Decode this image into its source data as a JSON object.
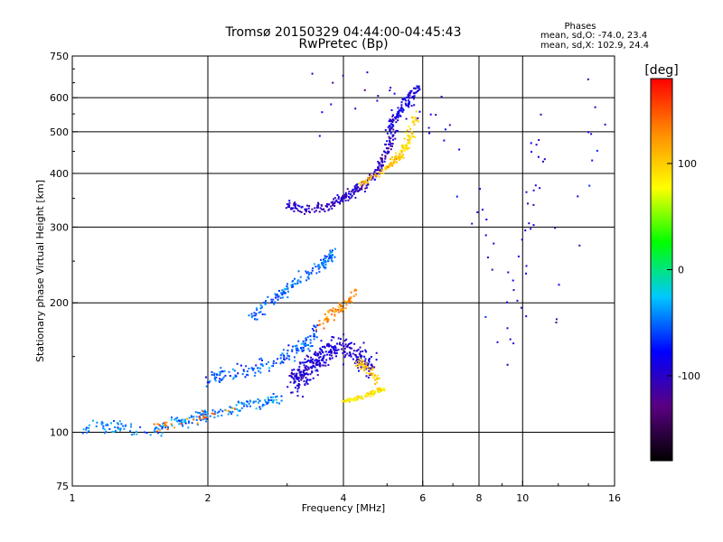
{
  "chart_data": {
    "type": "scatter",
    "title": "Tromsø 20150329 04:44:00-04:45:43",
    "subtitle": "RwPretec (Bp)",
    "xlabel": "Frequency [MHz]",
    "ylabel": "Stationary phase Virtual Height [km]",
    "x_scale": "log",
    "y_scale": "log",
    "xlim": [
      1,
      16
    ],
    "ylim": [
      75,
      750
    ],
    "x_ticks": [
      1,
      2,
      4,
      6,
      8,
      10,
      16
    ],
    "x_grid": [
      2,
      4,
      6,
      8,
      10
    ],
    "y_ticks": [
      75,
      100,
      200,
      300,
      400,
      500,
      600,
      750
    ],
    "y_grid": [
      100,
      200,
      300,
      400,
      500,
      600
    ],
    "grid": true,
    "legend": {
      "title": "Phases",
      "lines": [
        "mean, sd,O: -74.0, 23.4",
        "mean, sd,X: 102.9, 24.4"
      ],
      "placement": "top-right"
    },
    "colorbar": {
      "label": "[deg]",
      "range": [
        -180,
        180
      ],
      "ticks": [
        100,
        0,
        -100
      ],
      "colors": [
        "#000000",
        "#5a0082",
        "#0000ff",
        "#00c8ff",
        "#00ff00",
        "#ffff00",
        "#ff8c00",
        "#ff0000"
      ]
    },
    "traces": [
      {
        "points": [
          [
            1.05,
            103
          ],
          [
            1.2,
            103
          ],
          [
            1.35,
            102
          ],
          [
            1.5,
            101
          ],
          [
            1.62,
            104
          ],
          [
            1.75,
            106
          ],
          [
            1.9,
            108
          ],
          [
            2.0,
            110
          ],
          [
            2.2,
            112
          ],
          [
            2.45,
            116
          ],
          [
            2.7,
            118
          ],
          [
            2.9,
            121
          ]
        ],
        "spread": [
          0.03,
          0.05
        ],
        "phase": -45,
        "count": 220
      },
      {
        "points": [
          [
            1.5,
            101
          ],
          [
            1.9,
            108
          ],
          [
            2.3,
            112
          ]
        ],
        "spread": [
          0.03,
          0.04
        ],
        "phase": 140,
        "count": 30
      },
      {
        "points": [
          [
            2.0,
            132
          ],
          [
            2.3,
            138
          ],
          [
            2.6,
            142
          ],
          [
            3.0,
            150
          ],
          [
            3.3,
            160
          ],
          [
            3.5,
            175
          ]
        ],
        "spread": [
          0.04,
          0.06
        ],
        "phase": -55,
        "count": 160
      },
      {
        "points": [
          [
            2.5,
            185
          ],
          [
            2.75,
            200
          ],
          [
            3.0,
            215
          ],
          [
            3.3,
            230
          ],
          [
            3.6,
            245
          ],
          [
            3.8,
            260
          ]
        ],
        "spread": [
          0.03,
          0.05
        ],
        "phase": -50,
        "count": 150
      },
      {
        "points": [
          [
            3.1,
            130
          ],
          [
            3.3,
            140
          ],
          [
            3.6,
            150
          ],
          [
            3.9,
            160
          ],
          [
            4.3,
            150
          ],
          [
            4.6,
            140
          ]
        ],
        "spread": [
          0.05,
          0.1
        ],
        "phase": -95,
        "count": 350
      },
      {
        "points": [
          [
            3.5,
            175
          ],
          [
            3.8,
            190
          ],
          [
            4.1,
            200
          ],
          [
            4.3,
            215
          ]
        ],
        "spread": [
          0.03,
          0.04
        ],
        "phase": 130,
        "count": 70
      },
      {
        "points": [
          [
            4.0,
            118
          ],
          [
            4.3,
            120
          ],
          [
            4.6,
            123
          ],
          [
            4.9,
            126
          ]
        ],
        "spread": [
          0.02,
          0.015
        ],
        "phase": 85,
        "count": 100
      },
      {
        "points": [
          [
            4.3,
            145
          ],
          [
            4.6,
            140
          ],
          [
            4.8,
            130
          ]
        ],
        "spread": [
          0.03,
          0.05
        ],
        "phase": 100,
        "count": 50
      },
      {
        "points": [
          [
            3.0,
            335
          ],
          [
            3.3,
            330
          ],
          [
            3.6,
            332
          ],
          [
            3.9,
            345
          ],
          [
            4.2,
            360
          ],
          [
            4.5,
            380
          ],
          [
            4.8,
            410
          ],
          [
            5.0,
            450
          ],
          [
            5.2,
            500
          ]
        ],
        "spread": [
          0.03,
          0.04
        ],
        "phase": -100,
        "count": 260
      },
      {
        "points": [
          [
            4.4,
            380
          ],
          [
            4.8,
            400
          ],
          [
            5.1,
            420
          ],
          [
            5.3,
            440
          ]
        ],
        "spread": [
          0.025,
          0.03
        ],
        "phase": 110,
        "count": 80
      },
      {
        "points": [
          [
            5.0,
            500
          ],
          [
            5.3,
            550
          ],
          [
            5.6,
            600
          ],
          [
            5.9,
            640
          ]
        ],
        "spread": [
          0.03,
          0.04
        ],
        "phase": -90,
        "count": 110
      },
      {
        "points": [
          [
            5.3,
            430
          ],
          [
            5.6,
            480
          ],
          [
            5.8,
            550
          ]
        ],
        "spread": [
          0.03,
          0.05
        ],
        "phase": 95,
        "count": 70
      },
      {
        "points": [
          [
            3.5,
            600
          ],
          [
            4.5,
            600
          ],
          [
            5.5,
            620
          ],
          [
            6.2,
            600
          ],
          [
            7.0,
            400
          ],
          [
            8.5,
            300
          ],
          [
            9.0,
            150
          ],
          [
            10.0,
            250
          ],
          [
            10.5,
            350
          ],
          [
            11.0,
            500
          ],
          [
            12.0,
            200
          ],
          [
            14.5,
            400
          ],
          [
            14.5,
            600
          ]
        ],
        "spread": [
          0.08,
          0.3
        ],
        "phase": -95,
        "count": 90
      }
    ]
  }
}
